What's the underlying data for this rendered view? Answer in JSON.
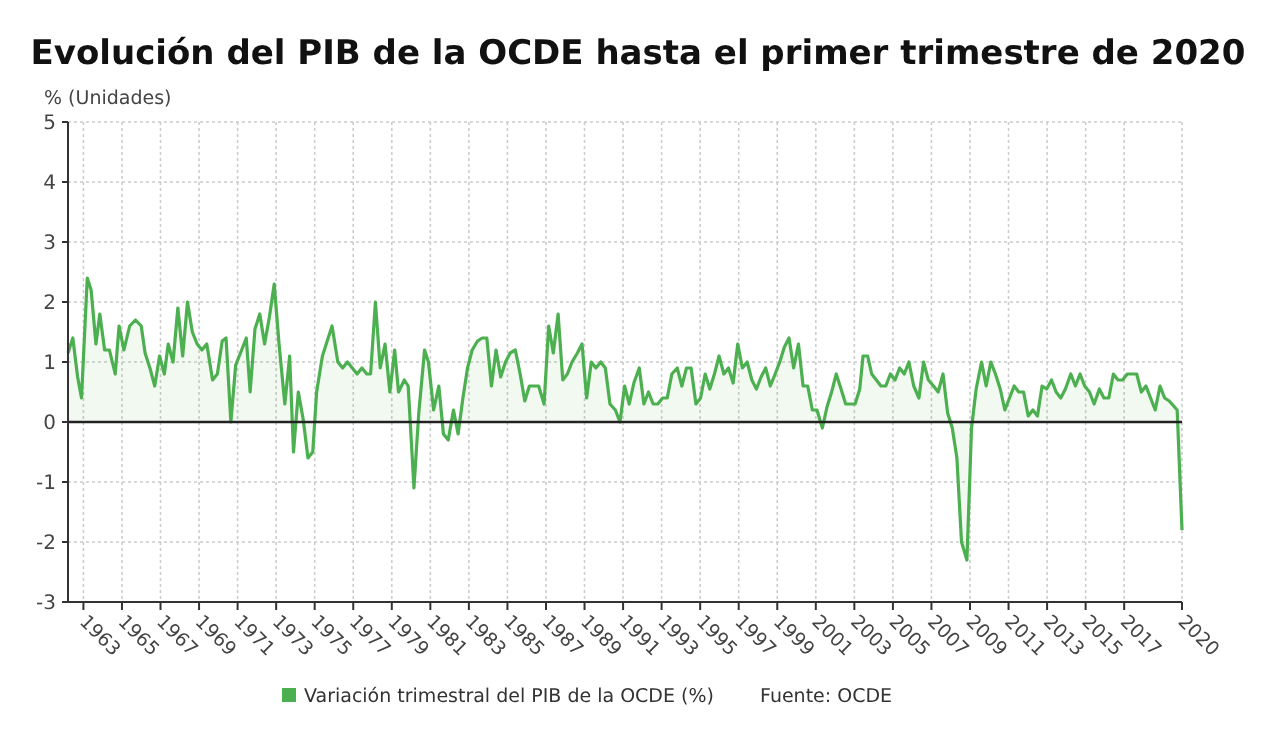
{
  "chart_data": {
    "type": "area",
    "title": "Evolución del PIB de la OCDE hasta el primer trimestre de 2020",
    "ylabel": "% (Unidades)",
    "annotations": [
      "Fuente: OCDE"
    ],
    "grid": true,
    "legend": "bottom",
    "xlim": [
      1962.2,
      2020
    ],
    "xticks": [
      1963,
      1965,
      1967,
      1969,
      1971,
      1973,
      1975,
      1977,
      1979,
      1981,
      1983,
      1985,
      1987,
      1989,
      1991,
      1993,
      1995,
      1997,
      1999,
      2001,
      2003,
      2005,
      2007,
      2009,
      2011,
      2013,
      2015,
      2017,
      2020
    ],
    "ylim": [
      -3,
      5
    ],
    "yticks": [
      -3,
      -2,
      -1,
      0,
      1,
      2,
      3,
      4,
      5
    ],
    "x": [
      1962.2,
      1962.45,
      1962.7,
      1962.9,
      1963.2,
      1963.4,
      1963.65,
      1963.85,
      1964.1,
      1964.35,
      1964.65,
      1964.85,
      1965.1,
      1965.4,
      1965.7,
      1966.0,
      1966.2,
      1966.45,
      1966.7,
      1966.95,
      1967.2,
      1967.4,
      1967.65,
      1967.9,
      1968.15,
      1968.4,
      1968.65,
      1968.9,
      1969.15,
      1969.4,
      1969.7,
      1969.95,
      1970.2,
      1970.4,
      1970.65,
      1970.9,
      1971.15,
      1971.45,
      1971.65,
      1971.9,
      1972.15,
      1972.4,
      1972.65,
      1972.9,
      1973.15,
      1973.45,
      1973.7,
      1973.9,
      1974.15,
      1974.4,
      1974.65,
      1974.9,
      1975.1,
      1975.4,
      1975.7,
      1975.9,
      1976.2,
      1976.45,
      1976.7,
      1976.95,
      1977.2,
      1977.45,
      1977.7,
      1977.9,
      1978.15,
      1978.4,
      1978.65,
      1978.9,
      1979.15,
      1979.35,
      1979.65,
      1979.85,
      1980.15,
      1980.4,
      1980.7,
      1980.9,
      1981.17,
      1981.44,
      1981.68,
      1981.93,
      1982.2,
      1982.44,
      1982.69,
      1982.93,
      1983.17,
      1983.45,
      1983.69,
      1983.93,
      1984.17,
      1984.41,
      1984.65,
      1984.9,
      1985.14,
      1985.41,
      1985.66,
      1985.9,
      1986.14,
      1986.38,
      1986.62,
      1986.9,
      1987.14,
      1987.38,
      1987.63,
      1987.87,
      1988.11,
      1988.35,
      1988.63,
      1988.87,
      1989.11,
      1989.35,
      1989.59,
      1989.84,
      1990.08,
      1990.32,
      1990.6,
      1990.84,
      1991.08,
      1991.32,
      1991.56,
      1991.84,
      1992.08,
      1992.32,
      1992.56,
      1992.8,
      1993.05,
      1993.29,
      1993.53,
      1993.81,
      1994.05,
      1994.29,
      1994.53,
      1994.78,
      1995.02,
      1995.26,
      1995.5,
      1995.74,
      1995.98,
      1996.23,
      1996.47,
      1996.71,
      1996.95,
      1997.19,
      1997.44,
      1997.68,
      1997.92,
      1998.16,
      1998.4,
      1998.64,
      1998.89,
      1999.13,
      1999.37,
      1999.61,
      1999.85,
      2000.1,
      2000.34,
      2000.58,
      2000.82,
      2001.06,
      2001.34,
      2001.58,
      2001.82,
      2002.06,
      2002.31,
      2002.55,
      2002.79,
      2003.04,
      2003.28,
      2003.45,
      2003.69,
      2003.9,
      2004.14,
      2004.38,
      2004.63,
      2004.87,
      2005.11,
      2005.35,
      2005.59,
      2005.83,
      2006.08,
      2006.35,
      2006.59,
      2006.84,
      2007.11,
      2007.35,
      2007.6,
      2007.84,
      2008.08,
      2008.32,
      2008.56,
      2008.84,
      2009.08,
      2009.32,
      2009.6,
      2009.84,
      2010.08,
      2010.32,
      2010.57,
      2010.81,
      2011.05,
      2011.29,
      2011.53,
      2011.78,
      2012.02,
      2012.26,
      2012.5,
      2012.74,
      2012.98,
      2013.23,
      2013.47,
      2013.71,
      2013.95,
      2014.23,
      2014.47,
      2014.71,
      2014.95,
      2015.2,
      2015.44,
      2015.71,
      2015.95,
      2016.2,
      2016.44,
      2016.68,
      2016.92,
      2017.16,
      2017.41,
      2017.65,
      2017.89,
      2018.13,
      2018.37,
      2018.61,
      2018.86,
      2019.1,
      2019.34,
      2019.75,
      2020
    ],
    "series": [
      {
        "name": "Variación trimestral del PIB de la OCDE (%)",
        "color": "#4caf50",
        "values": [
          1.15,
          1.4,
          0.75,
          0.4,
          2.4,
          2.2,
          1.3,
          1.8,
          1.2,
          1.2,
          0.8,
          1.6,
          1.2,
          1.6,
          1.7,
          1.6,
          1.15,
          0.9,
          0.6,
          1.1,
          0.8,
          1.3,
          1.0,
          1.9,
          1.1,
          2.0,
          1.5,
          1.3,
          1.2,
          1.3,
          0.7,
          0.8,
          1.35,
          1.4,
          0.0,
          0.95,
          1.15,
          1.4,
          0.5,
          1.55,
          1.8,
          1.3,
          1.75,
          2.3,
          1.3,
          0.3,
          1.1,
          -0.5,
          0.5,
          0.05,
          -0.6,
          -0.5,
          0.5,
          1.1,
          1.4,
          1.6,
          1.0,
          0.9,
          1.0,
          0.9,
          0.8,
          0.9,
          0.8,
          0.8,
          2.0,
          0.9,
          1.3,
          0.5,
          1.2,
          0.5,
          0.7,
          0.6,
          -1.1,
          0.15,
          1.2,
          1.0,
          0.2,
          0.6,
          -0.2,
          -0.3,
          0.2,
          -0.2,
          0.4,
          0.9,
          1.2,
          1.35,
          1.4,
          1.4,
          0.6,
          1.2,
          0.75,
          1.0,
          1.15,
          1.2,
          0.8,
          0.35,
          0.6,
          0.6,
          0.6,
          0.3,
          1.6,
          1.15,
          1.8,
          0.7,
          0.8,
          1.0,
          1.15,
          1.3,
          0.4,
          1.0,
          0.9,
          1.0,
          0.9,
          0.3,
          0.2,
          0.0,
          0.6,
          0.3,
          0.65,
          0.9,
          0.3,
          0.5,
          0.3,
          0.3,
          0.4,
          0.4,
          0.8,
          0.9,
          0.6,
          0.9,
          0.9,
          0.3,
          0.4,
          0.8,
          0.55,
          0.8,
          1.1,
          0.8,
          0.9,
          0.65,
          1.3,
          0.9,
          1.0,
          0.7,
          0.55,
          0.75,
          0.9,
          0.6,
          0.8,
          1.0,
          1.25,
          1.4,
          0.9,
          1.3,
          0.6,
          0.6,
          0.2,
          0.2,
          -0.1,
          0.25,
          0.5,
          0.8,
          0.55,
          0.3,
          0.3,
          0.3,
          0.55,
          1.1,
          1.1,
          0.8,
          0.7,
          0.6,
          0.6,
          0.8,
          0.7,
          0.9,
          0.8,
          1.0,
          0.6,
          0.4,
          1.0,
          0.7,
          0.6,
          0.5,
          0.8,
          0.15,
          -0.1,
          -0.6,
          -2.0,
          -2.3,
          -0.1,
          0.55,
          1.0,
          0.6,
          1.0,
          0.8,
          0.55,
          0.2,
          0.4,
          0.6,
          0.5,
          0.5,
          0.1,
          0.2,
          0.1,
          0.6,
          0.55,
          0.7,
          0.5,
          0.4,
          0.55,
          0.8,
          0.6,
          0.8,
          0.6,
          0.5,
          0.3,
          0.55,
          0.4,
          0.4,
          0.8,
          0.7,
          0.7,
          0.8,
          0.8,
          0.8,
          0.5,
          0.6,
          0.4,
          0.2,
          0.6,
          0.4,
          0.35,
          0.2,
          -1.8
        ]
      }
    ]
  }
}
